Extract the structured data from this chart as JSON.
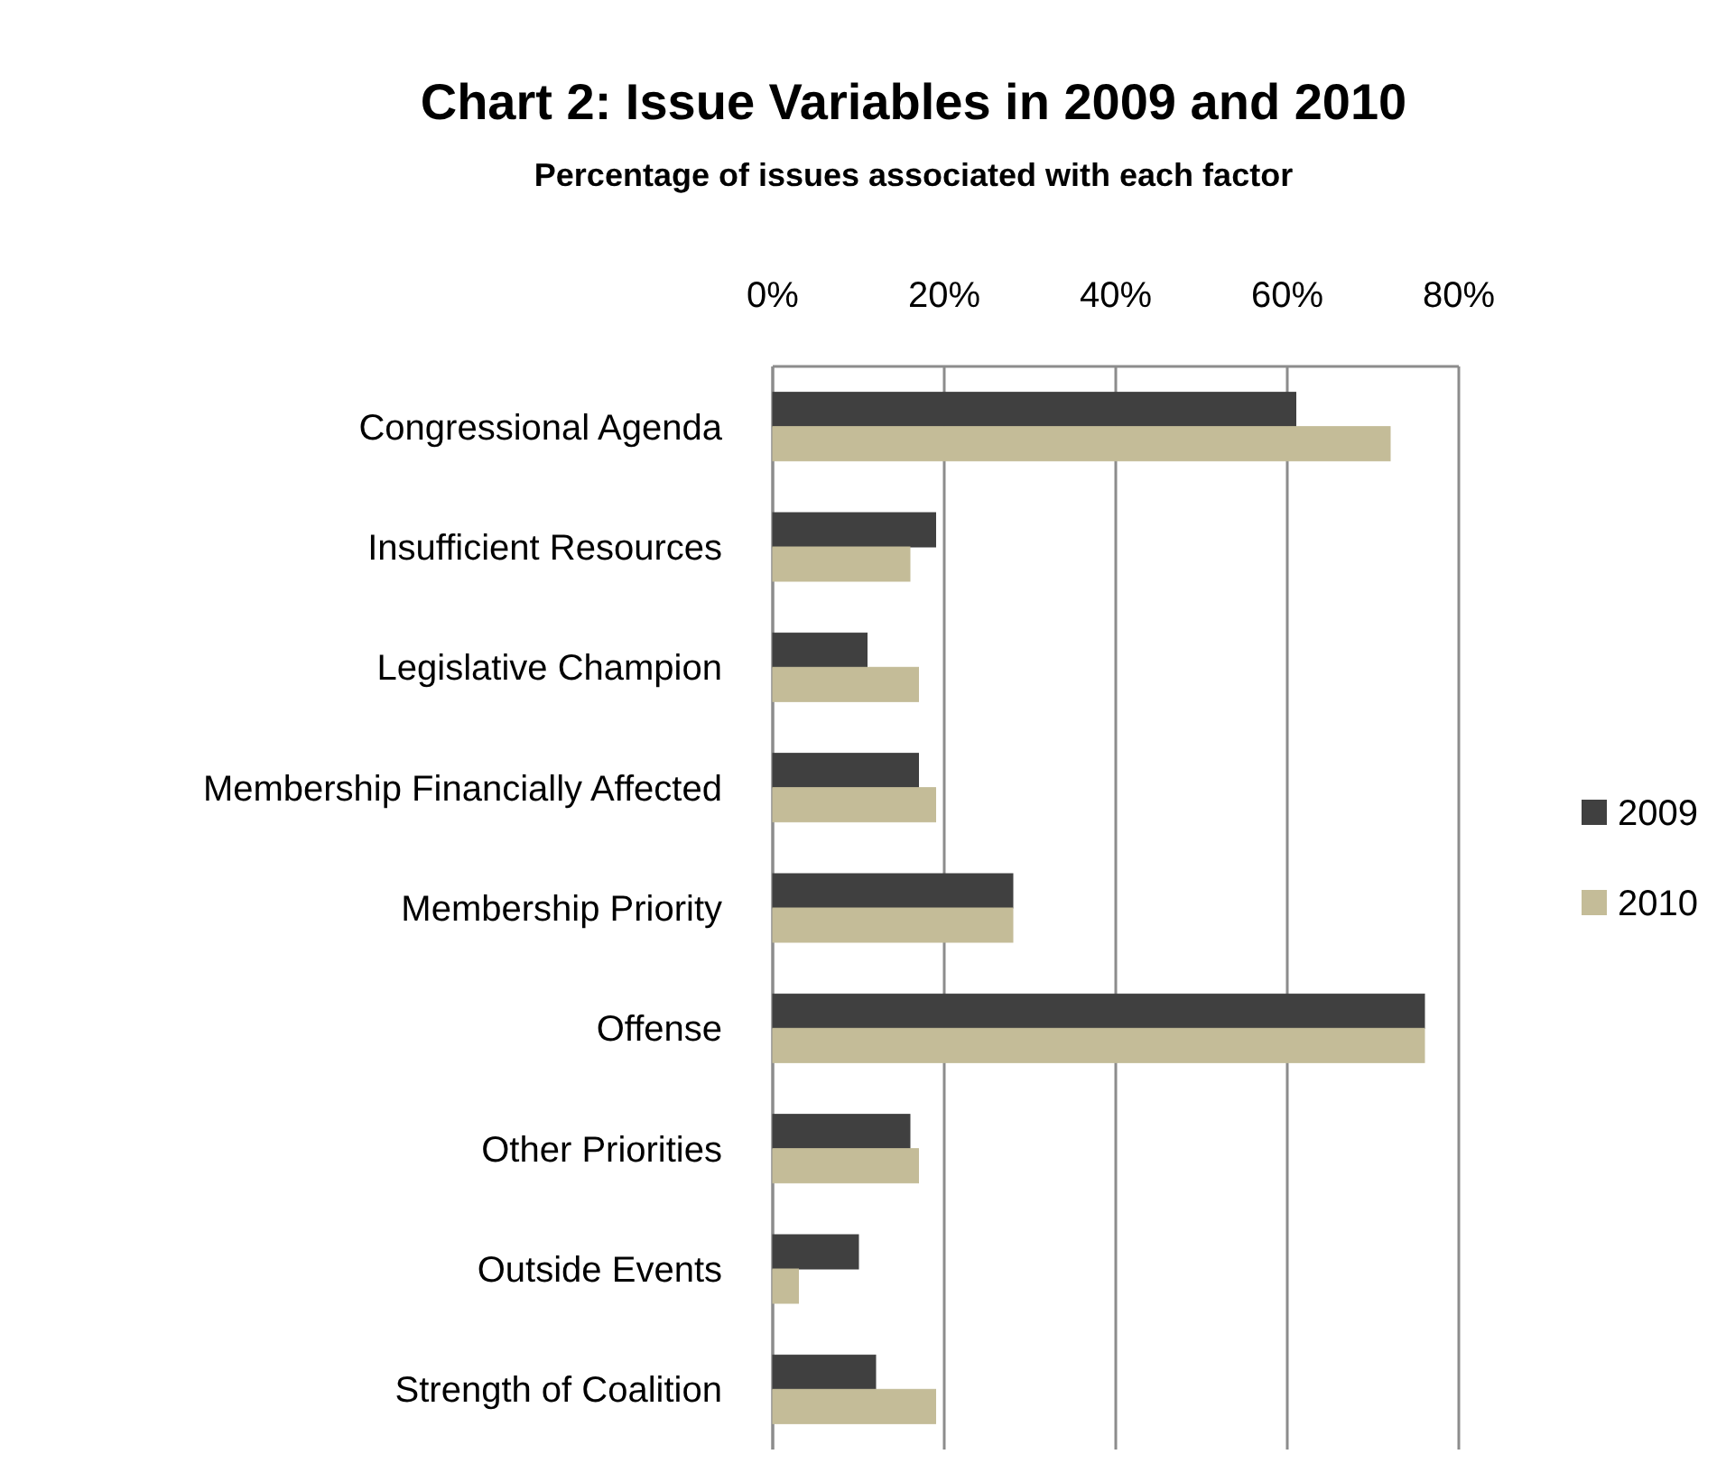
{
  "chart_data": {
    "type": "bar",
    "orientation": "horizontal",
    "title": "Chart 2: Issue Variables in 2009 and 2010",
    "subtitle": "Percentage of issues associated with each factor",
    "categories": [
      "Congressional Agenda",
      "Insufficient Resources",
      "Legislative Champion",
      "Membership Financially Affected",
      "Membership Priority",
      "Offense",
      "Other Priorities",
      "Outside Events",
      "Strength of Coalition"
    ],
    "series": [
      {
        "name": "2009",
        "color": "#404040",
        "values": [
          61,
          19,
          11,
          17,
          28,
          76,
          16,
          10,
          12
        ]
      },
      {
        "name": "2010",
        "color": "#c4bc98",
        "values": [
          72,
          16,
          17,
          19,
          28,
          76,
          17,
          3,
          19
        ]
      }
    ],
    "xlim": [
      0,
      80
    ],
    "xticks": [
      {
        "value": 0,
        "label": "0%"
      },
      {
        "value": 20,
        "label": "20%"
      },
      {
        "value": 40,
        "label": "40%"
      },
      {
        "value": 60,
        "label": "60%"
      },
      {
        "value": 80,
        "label": "80%"
      }
    ],
    "grid": "x",
    "legend": "right"
  }
}
